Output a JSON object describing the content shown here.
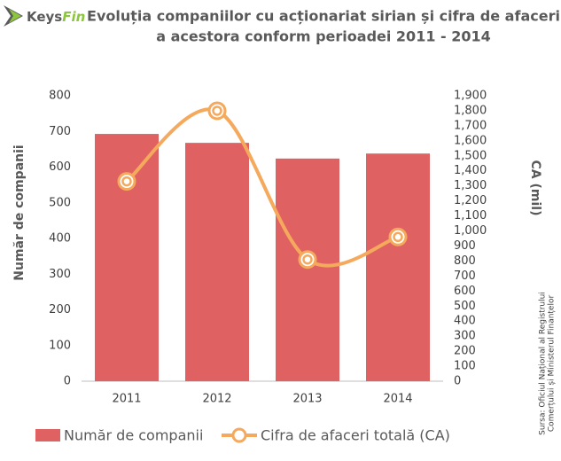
{
  "chart_data": {
    "type": "bar",
    "logo": {
      "first": "Keys",
      "second": "Fin"
    },
    "title": [
      "Evoluția companiilor cu acționariat sirian și cifra de afaceri",
      "a acestora conform perioadei 2011 - 2014"
    ],
    "categories": [
      "2011",
      "2012",
      "2013",
      "2014"
    ],
    "series": [
      {
        "name": "Număr de companii",
        "type": "bar",
        "color": "#e06162",
        "values": [
          693,
          668,
          624,
          638
        ]
      },
      {
        "name": "Cifra de afaceri totală (CA)",
        "type": "line",
        "axis": "y2",
        "color": "#f5a95c",
        "values": [
          1330,
          1800,
          810,
          960
        ]
      }
    ],
    "ylabel": "Număr de companii",
    "y2label": "CA (mil)",
    "ylim": [
      0,
      800
    ],
    "yticks": [
      0,
      100,
      200,
      300,
      400,
      500,
      600,
      700,
      800
    ],
    "y2lim": [
      0,
      1900
    ],
    "y2ticks": [
      0,
      100,
      200,
      300,
      400,
      500,
      600,
      700,
      800,
      900,
      {
        "value": 1000,
        "label": "1,000"
      },
      {
        "value": 1100,
        "label": "1,100"
      },
      {
        "value": 1200,
        "label": "1,200"
      },
      {
        "value": 1300,
        "label": "1,300"
      },
      {
        "value": 1400,
        "label": "1,400"
      },
      {
        "value": 1500,
        "label": "1,500"
      },
      {
        "value": 1600,
        "label": "1,600"
      },
      {
        "value": 1700,
        "label": "1,700"
      },
      {
        "value": 1800,
        "label": "1,800"
      },
      {
        "value": 1900,
        "label": "1,900"
      }
    ],
    "source": [
      "Sursa: Oficiul Național al Registrului",
      "Comerțului și Ministerul Finanțelor"
    ],
    "legend": "bottom"
  }
}
